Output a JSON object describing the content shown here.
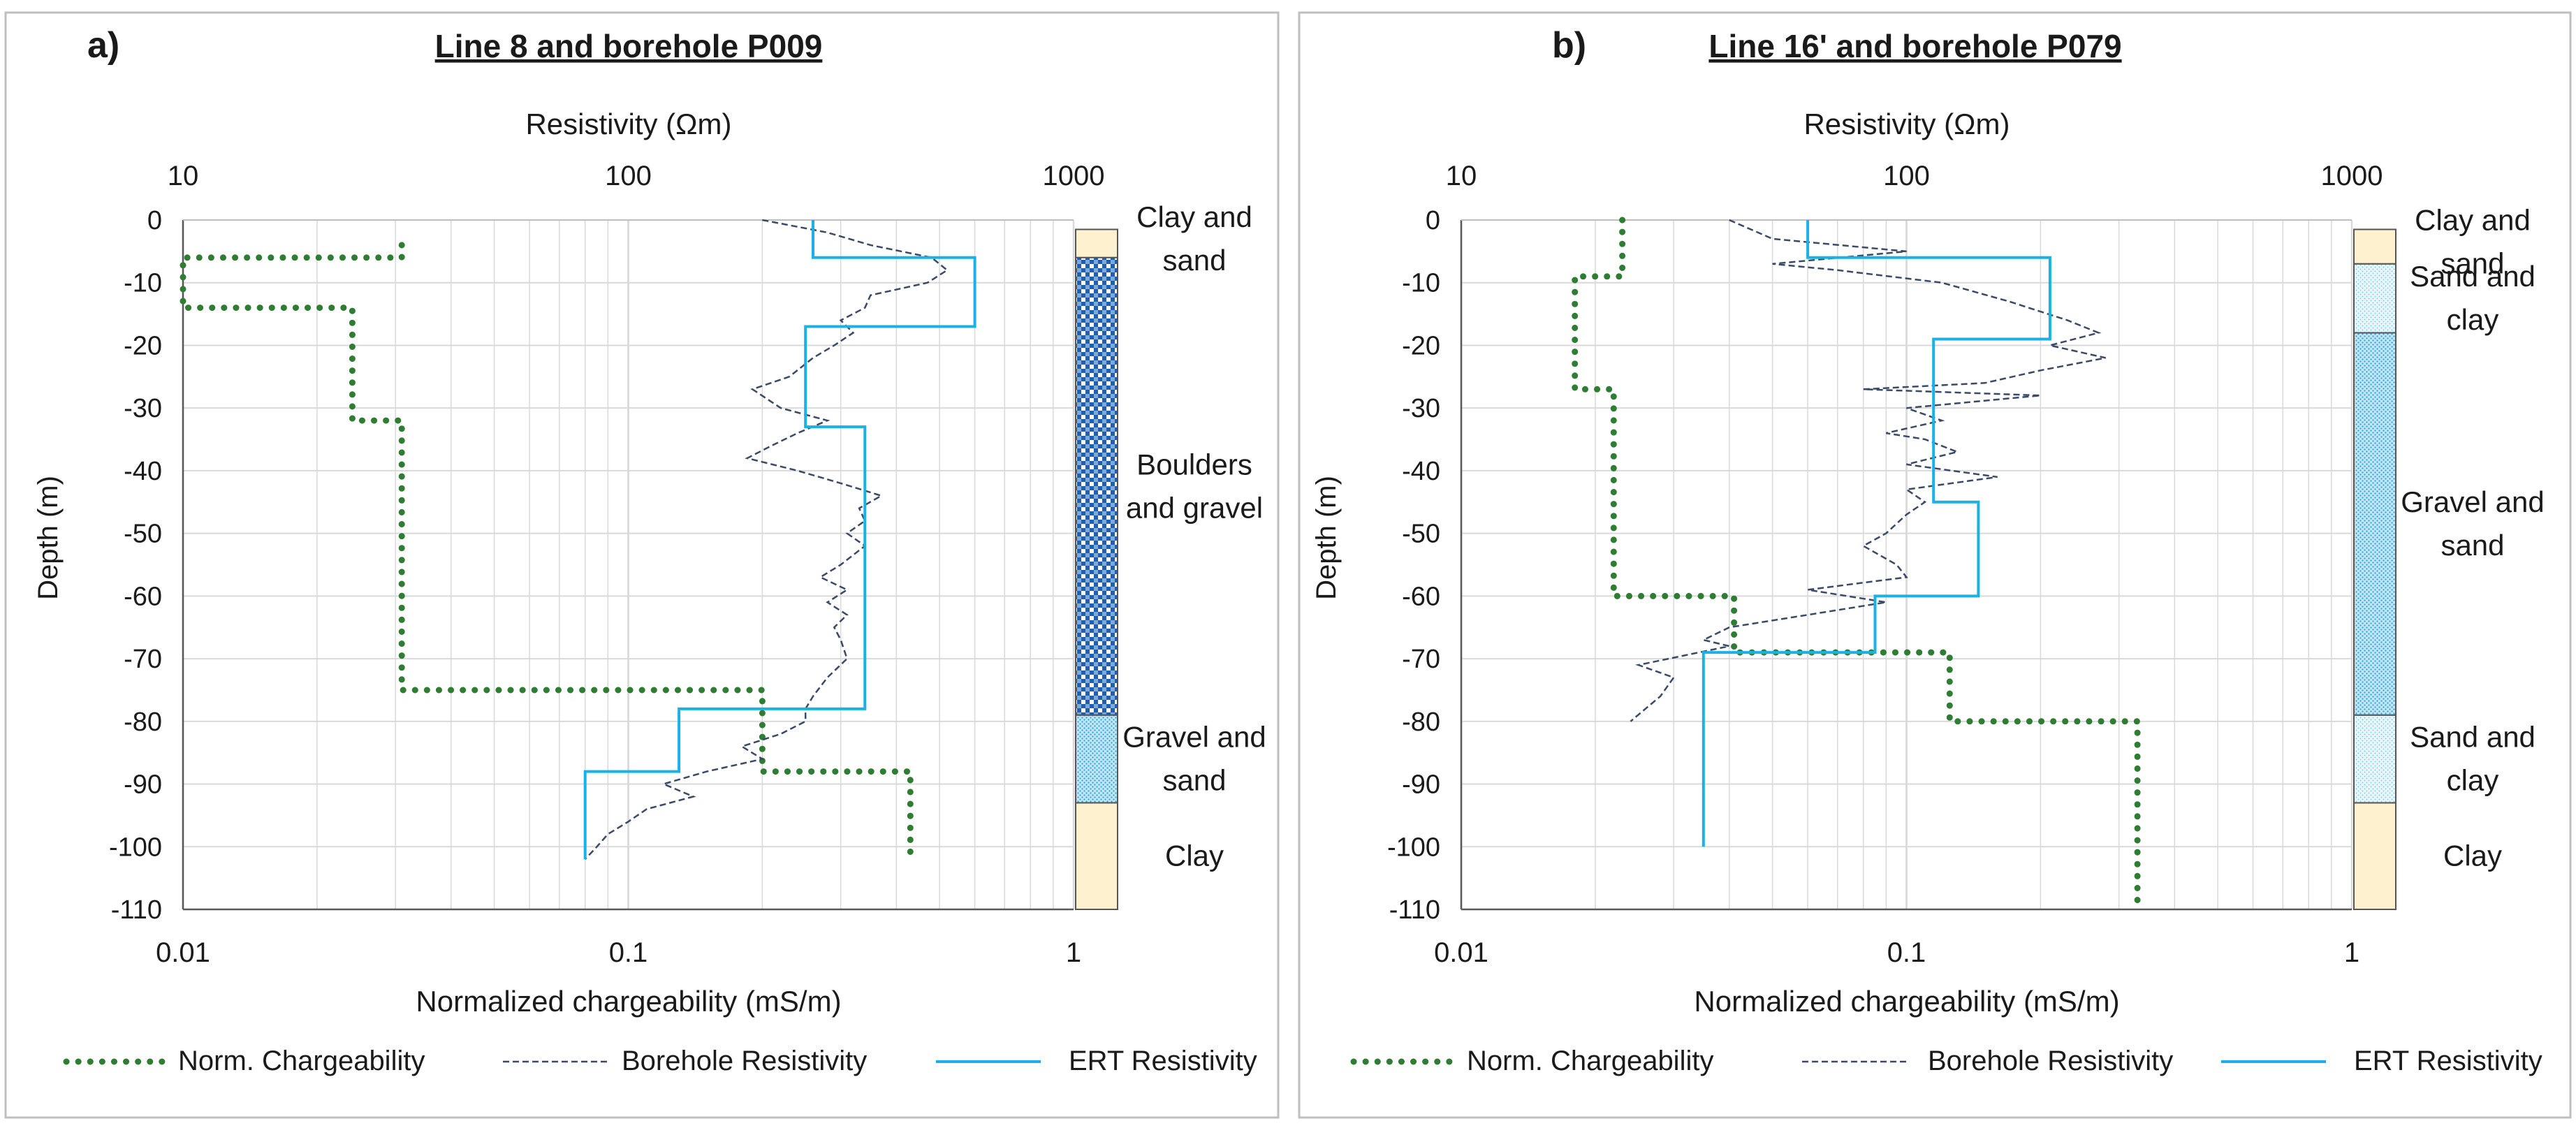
{
  "chart_data": [
    {
      "type": "line",
      "panel_label": "a)",
      "title": "Line 8 and borehole P009",
      "top_axis": {
        "label": "Resistivity (Ωm)",
        "scale": "log",
        "range": [
          10,
          1000
        ],
        "ticks": [
          "10",
          "100",
          "1000"
        ]
      },
      "bottom_axis": {
        "label": "Normalized chargeability (mS/m)",
        "scale": "log",
        "range": [
          0.01,
          1
        ],
        "ticks": [
          "0.01",
          "0.1",
          "1"
        ]
      },
      "y_axis": {
        "label": "Depth (m)",
        "range": [
          -110,
          0
        ],
        "ticks": [
          "0",
          "-10",
          "-20",
          "-30",
          "-40",
          "-50",
          "-60",
          "-70",
          "-80",
          "-90",
          "-100",
          "-110"
        ]
      },
      "series": [
        {
          "name": "Norm. Chargeability",
          "axis": "bottom",
          "points": [
            [
              0.031,
              -4
            ],
            [
              0.031,
              -6
            ],
            [
              0.01,
              -6
            ],
            [
              0.01,
              -14
            ],
            [
              0.024,
              -14
            ],
            [
              0.024,
              -32
            ],
            [
              0.031,
              -32
            ],
            [
              0.031,
              -75
            ],
            [
              0.2,
              -75
            ],
            [
              0.2,
              -88
            ],
            [
              0.43,
              -88
            ],
            [
              0.43,
              -101
            ]
          ]
        },
        {
          "name": "Borehole Resistivity",
          "axis": "top",
          "points": [
            [
              200,
              0
            ],
            [
              280,
              -2
            ],
            [
              350,
              -4
            ],
            [
              480,
              -6
            ],
            [
              520,
              -8
            ],
            [
              470,
              -10
            ],
            [
              350,
              -12
            ],
            [
              340,
              -14
            ],
            [
              300,
              -16
            ],
            [
              320,
              -18
            ],
            [
              290,
              -20
            ],
            [
              260,
              -22
            ],
            [
              230,
              -25
            ],
            [
              190,
              -27
            ],
            [
              220,
              -30
            ],
            [
              280,
              -32
            ],
            [
              240,
              -34
            ],
            [
              210,
              -36
            ],
            [
              185,
              -38
            ],
            [
              240,
              -40
            ],
            [
              300,
              -42
            ],
            [
              370,
              -44
            ],
            [
              330,
              -46
            ],
            [
              340,
              -48
            ],
            [
              310,
              -50
            ],
            [
              340,
              -52
            ],
            [
              300,
              -55
            ],
            [
              270,
              -57
            ],
            [
              310,
              -59
            ],
            [
              280,
              -61
            ],
            [
              310,
              -63
            ],
            [
              290,
              -65
            ],
            [
              300,
              -67
            ],
            [
              310,
              -70
            ],
            [
              280,
              -73
            ],
            [
              260,
              -76
            ],
            [
              250,
              -78
            ],
            [
              250,
              -80
            ],
            [
              220,
              -82
            ],
            [
              180,
              -84
            ],
            [
              200,
              -86
            ],
            [
              150,
              -88
            ],
            [
              120,
              -90
            ],
            [
              140,
              -92
            ],
            [
              110,
              -94
            ],
            [
              100,
              -96
            ],
            [
              90,
              -98
            ],
            [
              85,
              -100
            ],
            [
              80,
              -102
            ]
          ]
        },
        {
          "name": "ERT Resistivity",
          "axis": "top",
          "points": [
            [
              260,
              0
            ],
            [
              260,
              -6
            ],
            [
              600,
              -6
            ],
            [
              600,
              -17
            ],
            [
              250,
              -17
            ],
            [
              250,
              -33
            ],
            [
              340,
              -33
            ],
            [
              340,
              -78
            ],
            [
              130,
              -78
            ],
            [
              130,
              -88
            ],
            [
              80,
              -88
            ],
            [
              80,
              -102
            ]
          ]
        }
      ],
      "lithology": [
        {
          "label": "Clay and sand",
          "top": 0,
          "bottom": -6,
          "pattern": "clay"
        },
        {
          "label": "Boulders and gravel",
          "top": -6,
          "bottom": -79,
          "pattern": "boulders"
        },
        {
          "label": "Gravel and sand",
          "top": -79,
          "bottom": -93,
          "pattern": "gravel"
        },
        {
          "label": "Clay",
          "top": -93,
          "bottom": -110,
          "pattern": "clay"
        }
      ]
    },
    {
      "type": "line",
      "panel_label": "b)",
      "title": "Line 16' and borehole P079",
      "top_axis": {
        "label": "Resistivity (Ωm)",
        "scale": "log",
        "range": [
          10,
          1000
        ],
        "ticks": [
          "10",
          "100",
          "1000"
        ]
      },
      "bottom_axis": {
        "label": "Normalized chargeability (mS/m)",
        "scale": "log",
        "range": [
          0.01,
          1
        ],
        "ticks": [
          "0.01",
          "0.1",
          "1"
        ]
      },
      "y_axis": {
        "label": "Depth (m)",
        "range": [
          -110,
          0
        ],
        "ticks": [
          "0",
          "-10",
          "-20",
          "-30",
          "-40",
          "-50",
          "-60",
          "-70",
          "-80",
          "-90",
          "-100",
          "-110"
        ]
      },
      "series": [
        {
          "name": "Norm. Chargeability",
          "axis": "bottom",
          "points": [
            [
              0.023,
              0
            ],
            [
              0.023,
              -9
            ],
            [
              0.018,
              -9
            ],
            [
              0.018,
              -27
            ],
            [
              0.022,
              -27
            ],
            [
              0.022,
              -60
            ],
            [
              0.041,
              -60
            ],
            [
              0.041,
              -69
            ],
            [
              0.125,
              -69
            ],
            [
              0.125,
              -80
            ],
            [
              0.33,
              -80
            ],
            [
              0.33,
              -109
            ]
          ]
        },
        {
          "name": "Borehole Resistivity",
          "axis": "top",
          "points": [
            [
              40,
              0
            ],
            [
              50,
              -3
            ],
            [
              100,
              -5
            ],
            [
              50,
              -7
            ],
            [
              70,
              -8
            ],
            [
              120,
              -10
            ],
            [
              170,
              -13
            ],
            [
              230,
              -16
            ],
            [
              270,
              -18
            ],
            [
              210,
              -20
            ],
            [
              280,
              -22
            ],
            [
              200,
              -24
            ],
            [
              150,
              -26
            ],
            [
              80,
              -27
            ],
            [
              200,
              -28
            ],
            [
              100,
              -30
            ],
            [
              120,
              -32
            ],
            [
              90,
              -34
            ],
            [
              110,
              -35
            ],
            [
              130,
              -37
            ],
            [
              100,
              -39
            ],
            [
              160,
              -41
            ],
            [
              100,
              -43
            ],
            [
              110,
              -45
            ],
            [
              100,
              -47
            ],
            [
              90,
              -50
            ],
            [
              80,
              -52
            ],
            [
              95,
              -55
            ],
            [
              100,
              -57
            ],
            [
              60,
              -59
            ],
            [
              90,
              -61
            ],
            [
              60,
              -63
            ],
            [
              40,
              -65
            ],
            [
              35,
              -67
            ],
            [
              40,
              -68
            ],
            [
              25,
              -71
            ],
            [
              30,
              -73
            ],
            [
              28,
              -76
            ],
            [
              24,
              -80
            ]
          ]
        },
        {
          "name": "ERT Resistivity",
          "axis": "top",
          "points": [
            [
              60,
              0
            ],
            [
              60,
              -6
            ],
            [
              210,
              -6
            ],
            [
              210,
              -19
            ],
            [
              115,
              -19
            ],
            [
              115,
              -45
            ],
            [
              145,
              -45
            ],
            [
              145,
              -60
            ],
            [
              85,
              -60
            ],
            [
              85,
              -69
            ],
            [
              35,
              -69
            ],
            [
              35,
              -100
            ]
          ]
        }
      ],
      "lithology": [
        {
          "label": "Clay and sand",
          "top": 0,
          "bottom": -7,
          "pattern": "clay"
        },
        {
          "label": "Sand and clay",
          "top": -7,
          "bottom": -18,
          "pattern": "sandclay"
        },
        {
          "label": "Gravel and sand",
          "top": -18,
          "bottom": -79,
          "pattern": "gravel"
        },
        {
          "label": "Sand and clay",
          "top": -79,
          "bottom": -93,
          "pattern": "sandclay"
        },
        {
          "label": "Clay",
          "top": -93,
          "bottom": -110,
          "pattern": "clay"
        }
      ]
    }
  ],
  "colors": {
    "chargeability": "#2e7d32",
    "borehole": "#3a4a66",
    "ert": "#1ab2e6",
    "grid": "#d9d9d9",
    "clay": "#fdf1cf",
    "boulders": "#1f5fae",
    "gravel": "#6ec8e8",
    "sandclay": "#a8dcef",
    "frame": "#bfbfbf"
  }
}
